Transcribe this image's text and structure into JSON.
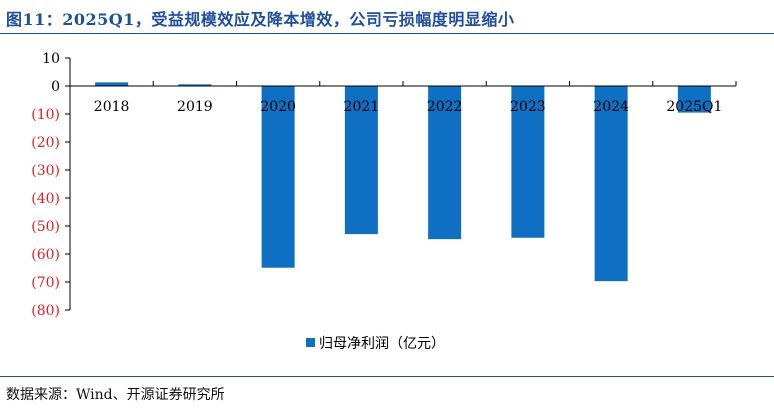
{
  "title": "图11：2025Q1，受益规模效应及降本增效，公司亏损幅度明显缩小",
  "source": "数据来源：Wind、开源证券研究所",
  "colors": {
    "bar": "#0f6fc2",
    "title": "#1f4e9c",
    "negative_tick": "#e31e24",
    "positive_tick": "#000000",
    "axis": "#000000"
  },
  "chart_data": {
    "type": "bar",
    "categories": [
      "2018",
      "2019",
      "2020",
      "2021",
      "2022",
      "2023",
      "2024",
      "2025Q1"
    ],
    "series": [
      {
        "name": "归母净利润（亿元）",
        "values": [
          1.3,
          0.6,
          -64.9,
          -52.9,
          -54.7,
          -54.2,
          -69.7,
          -9.5
        ]
      }
    ],
    "ylim": [
      -80,
      10
    ],
    "yticks": [
      10,
      0,
      -10,
      -20,
      -30,
      -40,
      -50,
      -60,
      -70,
      -80
    ],
    "ytick_labels": [
      "10",
      "0",
      "(10)",
      "(20)",
      "(30)",
      "(40)",
      "(50)",
      "(60)",
      "(70)",
      "(80)"
    ],
    "xlabel": "",
    "ylabel": "",
    "grid": false,
    "legend_position": "bottom-center"
  }
}
